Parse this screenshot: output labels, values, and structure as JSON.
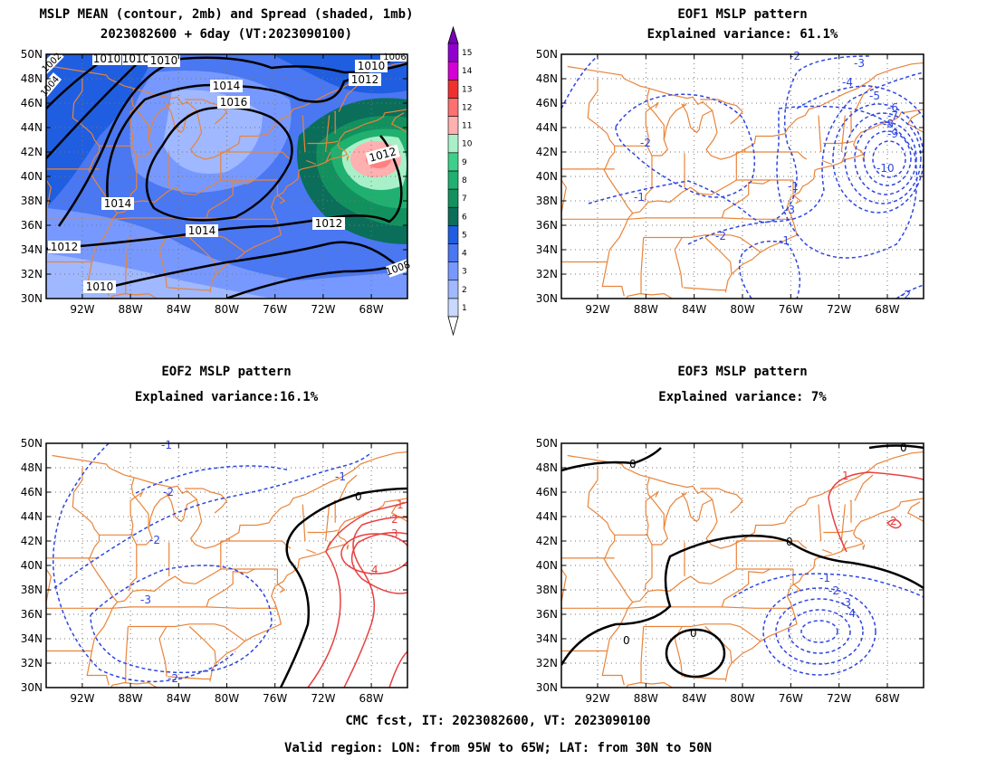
{
  "panels": [
    {
      "id": "mean",
      "title_lines": [
        "MSLP MEAN (contour, 2mb) and Spread (shaded, 1mb)",
        "2023082600 + 6day (VT:2023090100)"
      ]
    },
    {
      "id": "eof1",
      "title_lines": [
        "EOF1 MSLP pattern",
        "Explained variance: 61.1%"
      ]
    },
    {
      "id": "eof2",
      "title_lines": [
        "EOF2 MSLP pattern",
        "Explained variance:16.1%"
      ]
    },
    {
      "id": "eof3",
      "title_lines": [
        "EOF3 MSLP pattern",
        "Explained variance: 7%"
      ]
    }
  ],
  "axes": {
    "lon_ticks": [
      "92W",
      "88W",
      "84W",
      "80W",
      "76W",
      "72W",
      "68W"
    ],
    "lat_ticks": [
      "30N",
      "32N",
      "34N",
      "36N",
      "38N",
      "40N",
      "42N",
      "44N",
      "46N",
      "48N",
      "50N"
    ]
  },
  "colorbar": {
    "levels": [
      "1",
      "2",
      "3",
      "4",
      "5",
      "6",
      "7",
      "8",
      "9",
      "10",
      "11",
      "12",
      "13",
      "14",
      "15"
    ],
    "colors": [
      "#c8d8ff",
      "#a0b8ff",
      "#7799ff",
      "#4a77f2",
      "#1f5ee0",
      "#0a6e5a",
      "#12915e",
      "#20b070",
      "#3ed08a",
      "#a8f0c8",
      "#ffb0b0",
      "#ff7070",
      "#f03030",
      "#d400d4",
      "#9000d0"
    ]
  },
  "mean_contour_labels": [
    "1010",
    "1010",
    "1010",
    "1014",
    "1016",
    "1010",
    "1012",
    "1012",
    "1014",
    "1014",
    "1012",
    "1012",
    "1010",
    "1006",
    "1002",
    "1004",
    "1008"
  ],
  "eof1_labels": [
    "-1",
    "-2",
    "-3",
    "-4",
    "-5",
    "-6",
    "-7",
    "-8",
    "-9",
    "-10",
    "-1",
    "-2",
    "-1",
    "-2",
    "-3",
    "-2"
  ],
  "eof2_labels": [
    "-1",
    "-2",
    "-2",
    "-3",
    "-2",
    "0",
    "1",
    "2",
    "3",
    "4",
    "-1"
  ],
  "eof3_labels": [
    "0",
    "0",
    "0",
    "0",
    "0",
    "1",
    "2",
    "-1",
    "-2",
    "-3",
    "-4"
  ],
  "footer": {
    "line1": "CMC fcst, IT: 2023082600, VT: 2023090100",
    "line2": "Valid region: LON: from 95W to 65W; LAT: from 30N to 50N"
  }
}
